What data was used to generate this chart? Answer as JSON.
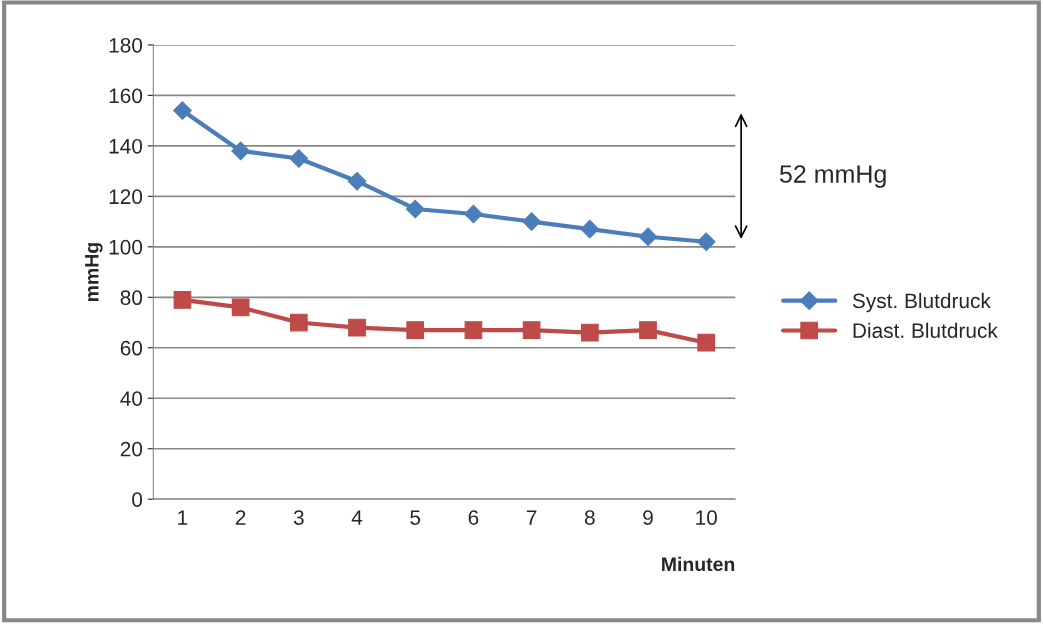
{
  "chart_data": {
    "type": "line",
    "ylabel": "mmHg",
    "xlabel": "Minuten",
    "categories": [
      "1",
      "2",
      "3",
      "4",
      "5",
      "6",
      "7",
      "8",
      "9",
      "10"
    ],
    "series": [
      {
        "name": "Syst. Blutdruck",
        "color": "#4a7ebb",
        "marker": "diamond",
        "values": [
          154,
          138,
          135,
          126,
          115,
          113,
          110,
          107,
          104,
          102
        ]
      },
      {
        "name": "Diast. Blutdruck",
        "color": "#be4b48",
        "marker": "square",
        "values": [
          79,
          76,
          70,
          68,
          67,
          67,
          67,
          66,
          67,
          62
        ]
      }
    ],
    "ylim": [
      0,
      180
    ],
    "yticks": [
      0,
      20,
      40,
      60,
      80,
      100,
      120,
      140,
      160,
      180
    ],
    "grid": "y",
    "legend": "right",
    "annotations": [
      "52 mmHg"
    ]
  }
}
